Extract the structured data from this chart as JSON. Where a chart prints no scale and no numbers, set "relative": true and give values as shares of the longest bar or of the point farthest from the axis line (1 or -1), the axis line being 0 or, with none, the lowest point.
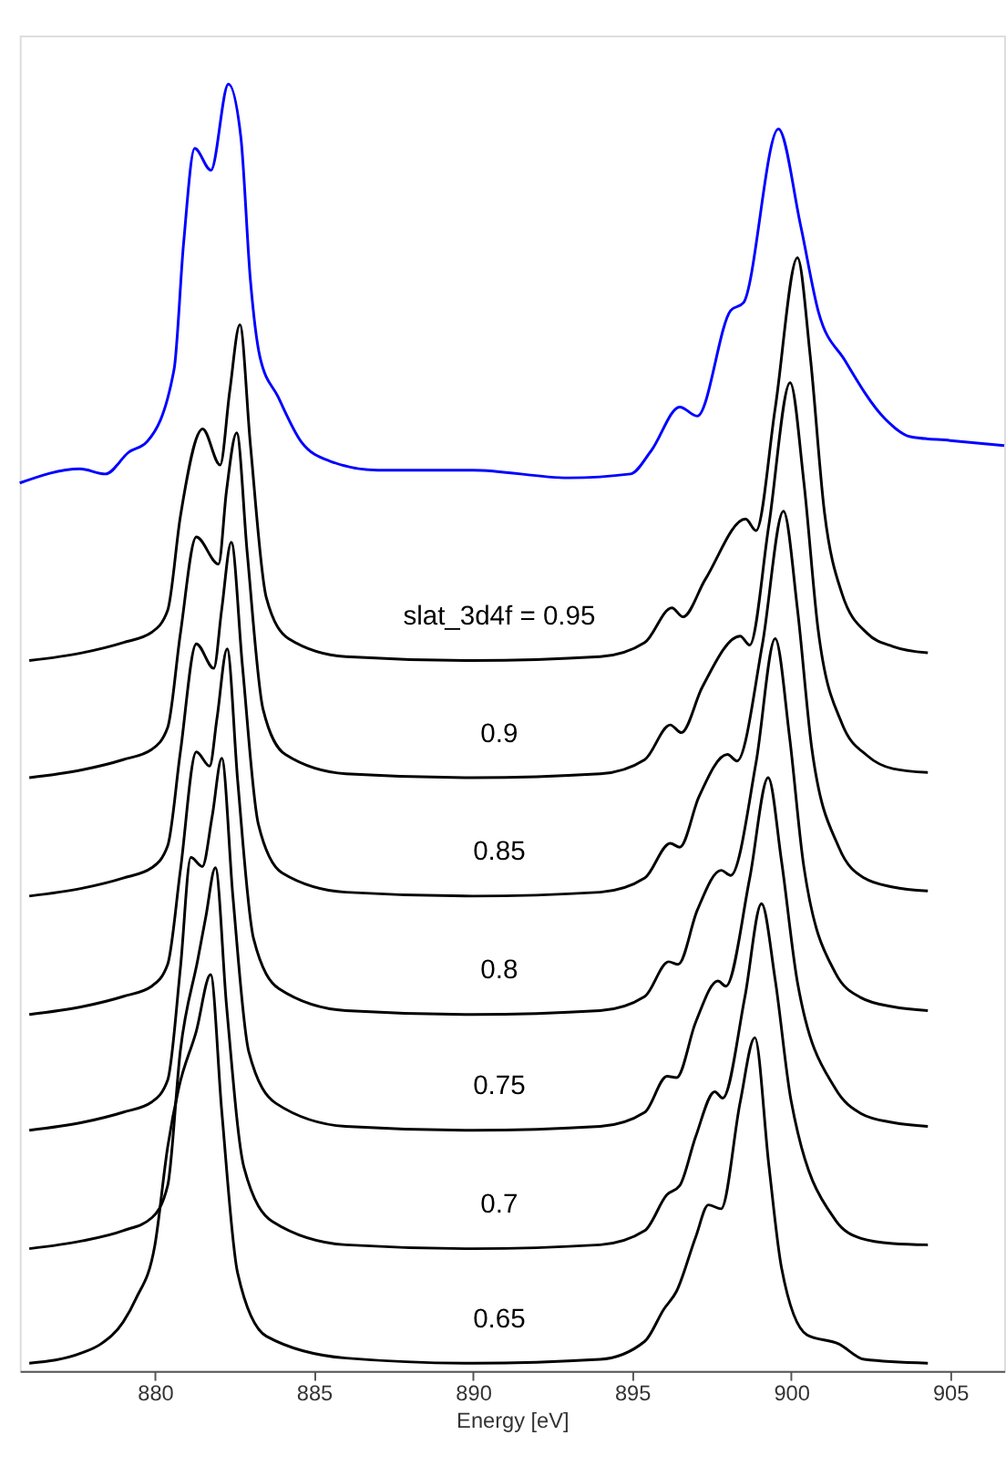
{
  "chart_data": {
    "type": "line",
    "xlabel": "Energy [eV]",
    "relative": true,
    "tick_labels": "x",
    "grid": false,
    "legend": false,
    "marker": "none",
    "line_style": "solid",
    "xlim": [
      875.75,
      906.7
    ],
    "xticks": [
      880,
      885,
      890,
      895,
      900,
      905
    ],
    "series": [
      {
        "color": "#0000ff",
        "x": [
          875.75,
          877.64,
          878.44,
          879.18,
          879.75,
          880.6,
          880.9,
          881.25,
          881.76,
          882.31,
          882.7,
          883.0,
          883.3,
          883.87,
          884.6,
          885.5,
          887,
          890,
          893,
          894.95,
          895.6,
          896.5,
          897.05,
          898.1,
          898.5,
          899.6,
          900.3,
          900.86,
          901.7,
          902.95,
          903.75,
          905,
          906.7
        ],
        "values": [
          0.69,
          0.701,
          0.697,
          0.714,
          0.722,
          0.778,
          0.876,
          0.95,
          0.933,
          1.0,
          0.959,
          0.848,
          0.788,
          0.757,
          0.722,
          0.707,
          0.7,
          0.7,
          0.694,
          0.697,
          0.715,
          0.749,
          0.742,
          0.824,
          0.83,
          0.965,
          0.89,
          0.823,
          0.785,
          0.74,
          0.726,
          0.723,
          0.719
        ]
      },
      {
        "color": "#000000",
        "x": [
          876.05,
          877.7,
          879.0,
          879.9,
          880.4,
          880.8,
          881.5,
          882.05,
          882.35,
          882.67,
          883.0,
          883.5,
          884.2,
          886,
          890,
          894,
          895.4,
          896.25,
          896.6,
          897.3,
          898.57,
          898.9,
          899.5,
          900.2,
          900.6,
          901.05,
          901.6,
          902.4,
          903.2,
          904.3
        ],
        "values": [
          0.552,
          0.558,
          0.566,
          0.574,
          0.591,
          0.664,
          0.732,
          0.704,
          0.761,
          0.813,
          0.72,
          0.601,
          0.569,
          0.555,
          0.552,
          0.555,
          0.566,
          0.593,
          0.586,
          0.615,
          0.662,
          0.653,
          0.748,
          0.865,
          0.789,
          0.667,
          0.604,
          0.573,
          0.563,
          0.558
        ]
      },
      {
        "color": "#000000",
        "x": [
          876.05,
          877.7,
          879.0,
          879.9,
          880.4,
          880.8,
          881.3,
          882.0,
          882.25,
          882.57,
          882.9,
          883.4,
          884.1,
          886,
          890,
          894,
          895.4,
          896.2,
          896.55,
          897.2,
          898.4,
          898.7,
          899.3,
          899.97,
          900.4,
          900.85,
          901.6,
          902.4,
          903.2,
          904.3
        ],
        "values": [
          0.461,
          0.467,
          0.475,
          0.483,
          0.5,
          0.573,
          0.648,
          0.627,
          0.684,
          0.729,
          0.636,
          0.514,
          0.479,
          0.464,
          0.461,
          0.464,
          0.475,
          0.502,
          0.496,
          0.531,
          0.571,
          0.564,
          0.657,
          0.768,
          0.691,
          0.576,
          0.503,
          0.478,
          0.468,
          0.465
        ]
      },
      {
        "color": "#000000",
        "x": [
          876.05,
          877.7,
          879.0,
          879.9,
          880.4,
          880.8,
          881.3,
          881.85,
          882.1,
          882.4,
          882.75,
          883.25,
          884.0,
          886,
          890,
          894,
          895.4,
          896.2,
          896.5,
          897.1,
          898.0,
          898.3,
          899.1,
          899.76,
          900.2,
          900.65,
          901.5,
          902.3,
          903.2,
          904.3
        ],
        "values": [
          0.369,
          0.375,
          0.383,
          0.391,
          0.408,
          0.481,
          0.565,
          0.546,
          0.592,
          0.644,
          0.548,
          0.425,
          0.387,
          0.372,
          0.369,
          0.372,
          0.383,
          0.41,
          0.407,
          0.446,
          0.479,
          0.474,
          0.565,
          0.668,
          0.592,
          0.484,
          0.407,
          0.383,
          0.376,
          0.373
        ]
      },
      {
        "color": "#000000",
        "x": [
          876.05,
          877.7,
          879.0,
          879.9,
          880.4,
          880.8,
          881.3,
          881.72,
          881.95,
          882.27,
          882.6,
          883.1,
          883.9,
          886,
          890,
          894,
          895.4,
          896.15,
          896.45,
          897.05,
          897.8,
          898.1,
          898.9,
          899.5,
          899.95,
          900.4,
          901.4,
          902.2,
          903.2,
          904.3
        ],
        "values": [
          0.277,
          0.283,
          0.291,
          0.299,
          0.316,
          0.389,
          0.481,
          0.47,
          0.507,
          0.561,
          0.459,
          0.336,
          0.297,
          0.28,
          0.277,
          0.28,
          0.291,
          0.318,
          0.316,
          0.358,
          0.389,
          0.385,
          0.473,
          0.569,
          0.493,
          0.392,
          0.309,
          0.29,
          0.283,
          0.28
        ]
      },
      {
        "color": "#000000",
        "x": [
          876.05,
          877.7,
          879.0,
          879.9,
          880.4,
          880.8,
          881.13,
          881.49,
          881.8,
          882.1,
          882.45,
          882.95,
          883.8,
          886,
          890,
          894,
          895.4,
          896.1,
          896.4,
          897.0,
          897.7,
          897.95,
          898.7,
          899.28,
          899.7,
          900.2,
          901.4,
          902.2,
          903.2,
          904.3
        ],
        "values": [
          0.187,
          0.193,
          0.201,
          0.209,
          0.226,
          0.313,
          0.399,
          0.392,
          0.431,
          0.476,
          0.369,
          0.248,
          0.208,
          0.19,
          0.187,
          0.19,
          0.201,
          0.229,
          0.228,
          0.271,
          0.303,
          0.299,
          0.383,
          0.461,
          0.396,
          0.302,
          0.219,
          0.2,
          0.193,
          0.19
        ]
      },
      {
        "color": "#000000",
        "x": [
          876.05,
          877.7,
          879.0,
          879.9,
          880.4,
          880.8,
          881.35,
          881.6,
          881.9,
          882.25,
          882.8,
          883.7,
          886,
          890,
          894,
          895.4,
          896.1,
          896.5,
          897.0,
          897.6,
          897.85,
          898.55,
          899.07,
          899.5,
          900.0,
          901.4,
          902.2,
          903.2,
          904.3
        ],
        "values": [
          0.095,
          0.101,
          0.109,
          0.119,
          0.144,
          0.249,
          0.32,
          0.353,
          0.391,
          0.284,
          0.158,
          0.116,
          0.098,
          0.095,
          0.098,
          0.109,
          0.137,
          0.144,
          0.182,
          0.217,
          0.212,
          0.291,
          0.363,
          0.304,
          0.21,
          0.117,
          0.103,
          0.099,
          0.098
        ]
      },
      {
        "color": "#000000",
        "x": [
          876.05,
          877.7,
          878.3,
          879.0,
          879.4,
          880.0,
          880.4,
          880.75,
          881.3,
          881.75,
          882.1,
          882.6,
          883.5,
          886,
          890,
          894,
          895.4,
          896.0,
          896.4,
          897.0,
          897.4,
          897.8,
          898.4,
          898.86,
          899.3,
          899.7,
          900.5,
          901.5,
          902.3,
          904.3
        ],
        "values": [
          0.006,
          0.014,
          0.021,
          0.038,
          0.056,
          0.098,
          0.174,
          0.22,
          0.264,
          0.308,
          0.202,
          0.076,
          0.027,
          0.01,
          0.006,
          0.009,
          0.023,
          0.048,
          0.062,
          0.104,
          0.129,
          0.126,
          0.209,
          0.259,
          0.16,
          0.08,
          0.028,
          0.021,
          0.009,
          0.006
        ]
      }
    ],
    "annotations": [
      "slat_3d4f = 0.95",
      "0.9",
      "0.85",
      "0.8",
      "0.75",
      "0.7",
      "0.65"
    ]
  }
}
